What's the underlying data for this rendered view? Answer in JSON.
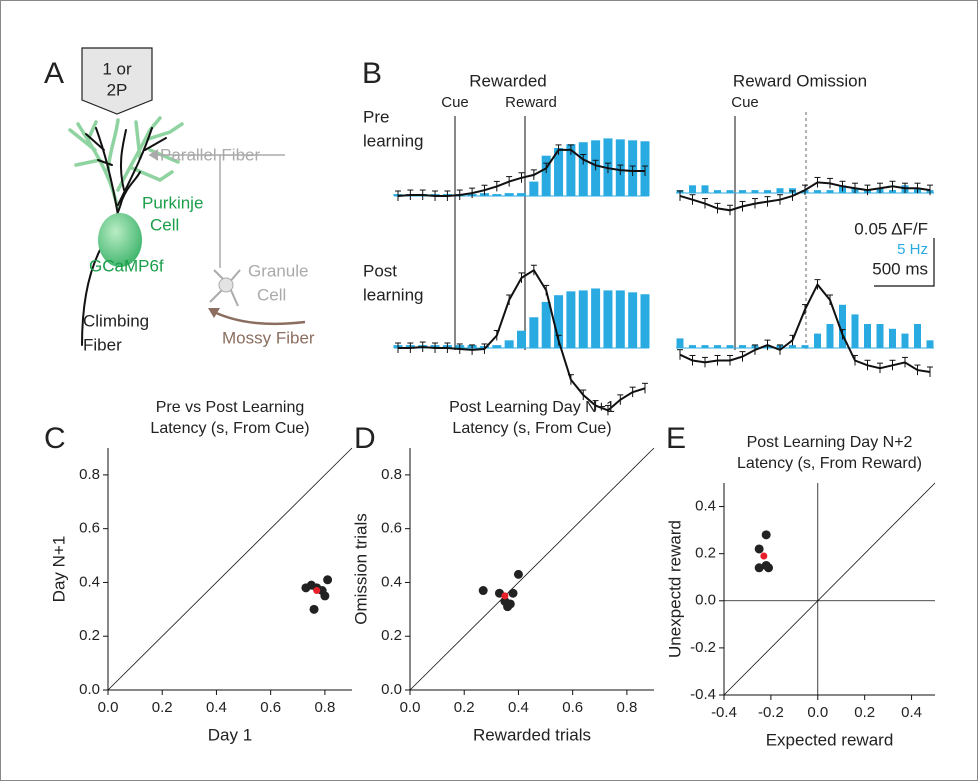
{
  "panel_labels": [
    "A",
    "B",
    "C",
    "D",
    "E"
  ],
  "diagram": {
    "laser": [
      "1 or",
      "2P"
    ],
    "parallel_fiber": "Parallel Fiber",
    "purkinje": [
      "Purkinje",
      "Cell"
    ],
    "indicator": "GCaMP6f",
    "granule": [
      "Granule",
      "Cell"
    ],
    "climbing": [
      "Climbing",
      "Fiber"
    ],
    "mossy": "Mossy Fiber"
  },
  "traces": {
    "column_titles": [
      "Rewarded",
      "Reward Omission"
    ],
    "row_labels": [
      [
        "Pre",
        "learning"
      ],
      [
        "Post",
        "learning"
      ]
    ],
    "events": [
      "Cue",
      "Reward",
      "Cue"
    ],
    "scale_bar": {
      "dff": "0.05 ΔF/F",
      "rate": "5 Hz",
      "time": "500 ms"
    }
  },
  "chart_data": [
    {
      "type": "trace",
      "bars": {
        "color": "#29abe2",
        "values": [
          0.2,
          0.2,
          0.2,
          0.2,
          0.2,
          0.2,
          0.2,
          0.3,
          0.2,
          0.3,
          0.3,
          1.5,
          4.2,
          5.0,
          5.4,
          5.6,
          5.8,
          6.0,
          5.9,
          5.8,
          5.7
        ]
      },
      "line": {
        "color": "#111111",
        "values": [
          0,
          0.001,
          0.001,
          0,
          0,
          0.001,
          0.003,
          0.006,
          0.01,
          0.015,
          0.019,
          0.022,
          0.029,
          0.048,
          0.048,
          0.038,
          0.032,
          0.029,
          0.027,
          0.026,
          0.026
        ]
      }
    },
    {
      "type": "trace",
      "bars": {
        "color": "#29abe2",
        "values": [
          0.3,
          0.8,
          0.8,
          0.3,
          0.3,
          0.3,
          0.3,
          0.3,
          0.5,
          0.5,
          0.3,
          0.3,
          0.3,
          0.8,
          0.5,
          0.3,
          0.5,
          0.3,
          0.8,
          0.5,
          0.3
        ]
      },
      "line": {
        "color": "#111111",
        "values": [
          -0.003,
          -0.007,
          -0.011,
          -0.016,
          -0.018,
          -0.014,
          -0.011,
          -0.009,
          -0.007,
          -0.003,
          0.003,
          0.011,
          0.01,
          0.007,
          0.005,
          0.003,
          0.005,
          0.007,
          0.005,
          0.005,
          0.003
        ]
      }
    },
    {
      "type": "trace",
      "bars": {
        "color": "#29abe2",
        "values": [
          0.3,
          0.3,
          0.3,
          0.3,
          0.3,
          0.3,
          0.3,
          0.2,
          0.3,
          0.8,
          1.8,
          3.2,
          4.8,
          5.5,
          5.9,
          6.0,
          6.2,
          6.0,
          6.0,
          5.8,
          5.6
        ]
      },
      "line": {
        "color": "#111111",
        "values": [
          0,
          0,
          0.001,
          0,
          0,
          -0.001,
          -0.002,
          -0.001,
          0.013,
          0.05,
          0.073,
          0.081,
          0.06,
          0.008,
          -0.033,
          -0.049,
          -0.06,
          -0.065,
          -0.054,
          -0.046,
          -0.042
        ]
      }
    },
    {
      "type": "trace",
      "bars": {
        "color": "#29abe2",
        "values": [
          1.0,
          0.3,
          0.3,
          0.3,
          0.3,
          0.3,
          0.3,
          0.3,
          0.3,
          0.3,
          0.3,
          1.5,
          2.5,
          4.5,
          3.5,
          2.5,
          2.5,
          2.0,
          1.5,
          2.5,
          0.8
        ]
      },
      "line": {
        "color": "#111111",
        "values": [
          -0.007,
          -0.013,
          -0.015,
          -0.013,
          -0.013,
          -0.009,
          -0.002,
          0.003,
          -0.002,
          0.008,
          0.04,
          0.066,
          0.05,
          0.014,
          -0.013,
          -0.018,
          -0.021,
          -0.018,
          -0.015,
          -0.023,
          -0.025
        ]
      }
    },
    {
      "type": "scatter",
      "title": [
        "Pre vs Post Learning",
        "Latency (s, From Cue)"
      ],
      "x_label": "Day 1",
      "y_label": "Day N+1",
      "x": [
        0.73,
        0.75,
        0.76,
        0.77,
        0.79,
        0.8,
        0.81
      ],
      "y": [
        0.38,
        0.39,
        0.3,
        0.38,
        0.37,
        0.35,
        0.41
      ],
      "color": "#222222",
      "mean": {
        "x": 0.77,
        "y": 0.37,
        "color": "#e8202a"
      },
      "xlim": [
        0,
        0.9
      ],
      "ylim": [
        0,
        0.9
      ],
      "xticks": [
        {
          "value": 0,
          "label": "0.0"
        },
        0.2,
        0.4,
        0.6,
        0.8
      ],
      "yticks": [
        {
          "value": 0,
          "label": "0.0"
        },
        0.2,
        0.4,
        0.6,
        0.8
      ],
      "diagonal": true,
      "zero_lines": false
    },
    {
      "type": "scatter",
      "title": [
        "Post Learning Day N+1",
        "Latency (s, From Cue)"
      ],
      "x_label": "Rewarded trials",
      "y_label": "Omission trials",
      "x": [
        0.27,
        0.33,
        0.35,
        0.36,
        0.37,
        0.38,
        0.4
      ],
      "y": [
        0.37,
        0.36,
        0.33,
        0.31,
        0.32,
        0.36,
        0.43
      ],
      "color": "#222222",
      "mean": {
        "x": 0.35,
        "y": 0.35,
        "color": "#e8202a"
      },
      "xlim": [
        0,
        0.9
      ],
      "ylim": [
        0,
        0.9
      ],
      "xticks": [
        {
          "value": 0,
          "label": "0.0"
        },
        0.2,
        0.4,
        0.6,
        0.8
      ],
      "yticks": [
        {
          "value": 0,
          "label": "0.0"
        },
        0.2,
        0.4,
        0.6,
        0.8
      ],
      "diagonal": true,
      "zero_lines": false
    },
    {
      "type": "scatter",
      "title": [
        "Post Learning Day N+2",
        "Latency (s, From Reward)"
      ],
      "x_label": "Expected reward",
      "y_label": "Unexpectd reward",
      "x": [
        -0.25,
        -0.22,
        -0.22,
        -0.21,
        -0.25
      ],
      "y": [
        0.22,
        0.28,
        0.15,
        0.14,
        0.14
      ],
      "color": "#222222",
      "mean": {
        "x": -0.23,
        "y": 0.19,
        "color": "#e8202a"
      },
      "xlim": [
        -0.4,
        0.5
      ],
      "ylim": [
        -0.4,
        0.5
      ],
      "xticks": [
        -0.4,
        -0.2,
        {
          "value": 0,
          "label": "0.0"
        },
        0.2,
        0.4
      ],
      "yticks": [
        -0.4,
        -0.2,
        {
          "value": 0,
          "label": "0.0"
        },
        0.2,
        0.4
      ],
      "diagonal": true,
      "zero_lines": true
    }
  ]
}
